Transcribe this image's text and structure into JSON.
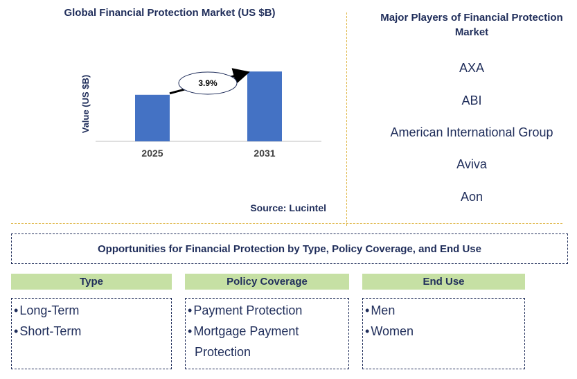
{
  "chart_data": {
    "type": "bar",
    "title": "Global Financial Protection Market (US $B)",
    "ylabel": "Value (US $B)",
    "categories": [
      "2025",
      "2031"
    ],
    "values": [
      64,
      96
    ],
    "ylim": [
      0,
      100
    ],
    "annotation": "3.9%",
    "bar_color": "#4472c4"
  },
  "source": "Source: Lucintel",
  "players": {
    "title": "Major Players of Financial Protection Market",
    "items": [
      "AXA",
      "ABI",
      "American International Group",
      "Aviva",
      "Aon"
    ]
  },
  "opportunities": {
    "title": "Opportunities for Financial Protection by Type, Policy Coverage, and End Use",
    "segments": [
      {
        "name": "Type",
        "items": [
          "Long-Term",
          "Short-Term"
        ]
      },
      {
        "name": "Policy Coverage",
        "items": [
          "Payment Protection",
          "Mortgage Payment Protection"
        ]
      },
      {
        "name": "End Use",
        "items": [
          "Men",
          "Women"
        ]
      }
    ]
  },
  "colors": {
    "text": "#1f2d5a",
    "header_fill": "#c6e0a4",
    "divider": "#e0b84a"
  }
}
